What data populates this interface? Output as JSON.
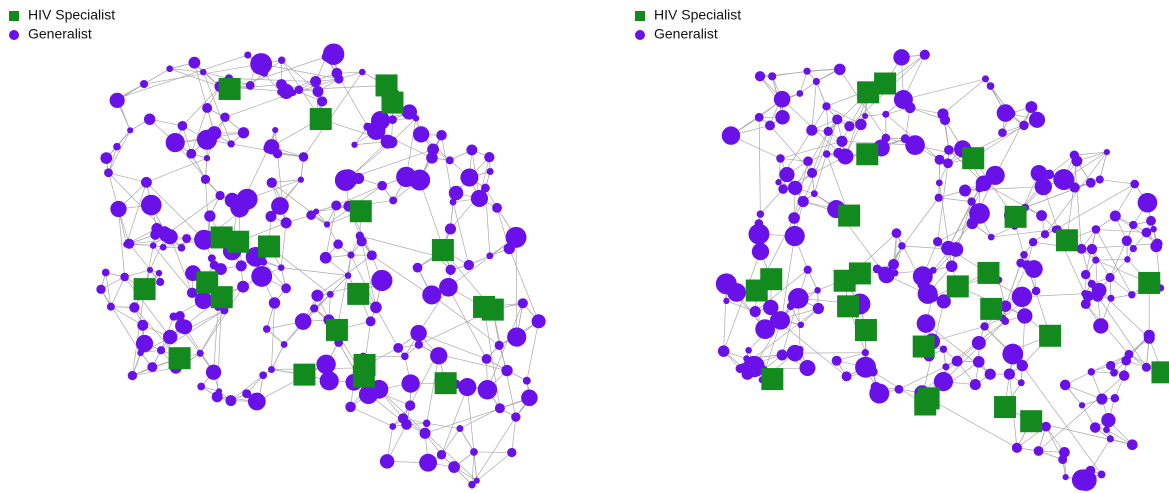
{
  "panels": [
    {
      "legend": [
        {
          "label": "HIV Specialist",
          "color": "#138a1d",
          "shape": "square"
        },
        {
          "label": "Generalist",
          "color": "#6a10e8",
          "shape": "circle"
        }
      ]
    },
    {
      "legend": [
        {
          "label": "HIV Specialist",
          "color": "#138a1d",
          "shape": "square"
        },
        {
          "label": "Generalist",
          "color": "#6a10e8",
          "shape": "circle"
        }
      ]
    }
  ]
}
